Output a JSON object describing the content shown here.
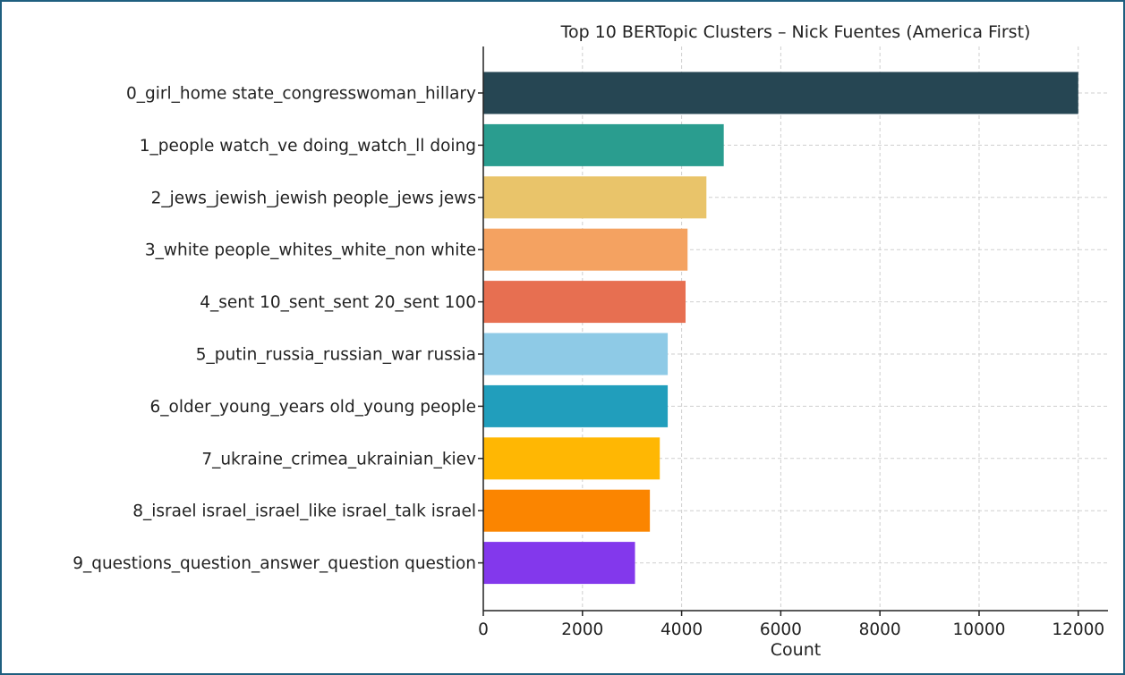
{
  "chart_data": {
    "type": "bar",
    "orientation": "horizontal",
    "title": "Top 10 BERTopic Clusters – Nick Fuentes (America First)",
    "xlabel": "Count",
    "ylabel": "",
    "xlim": [
      0,
      12600
    ],
    "xticks": [
      0,
      2000,
      4000,
      6000,
      8000,
      10000,
      12000
    ],
    "grid": true,
    "categories": [
      "0_girl_home state_congresswoman_hillary",
      "1_people watch_ve doing_watch_ll doing",
      "2_jews_jewish_jewish people_jews jews",
      "3_white people_whites_white_non white",
      "4_sent 10_sent_sent 20_sent 100",
      "5_putin_russia_russian_war russia",
      "6_older_young_years old_young people",
      "7_ukraine_crimea_ukrainian_kiev",
      "8_israel israel_israel_like israel_talk israel",
      "9_questions_question_answer_question question"
    ],
    "values": [
      12000,
      4850,
      4500,
      4120,
      4080,
      3720,
      3720,
      3560,
      3360,
      3060
    ],
    "colors": [
      "#264653",
      "#2a9d8f",
      "#e9c46a",
      "#f4a261",
      "#e76f51",
      "#8ecae6",
      "#219ebc",
      "#ffb703",
      "#fb8500",
      "#8338ec"
    ]
  }
}
